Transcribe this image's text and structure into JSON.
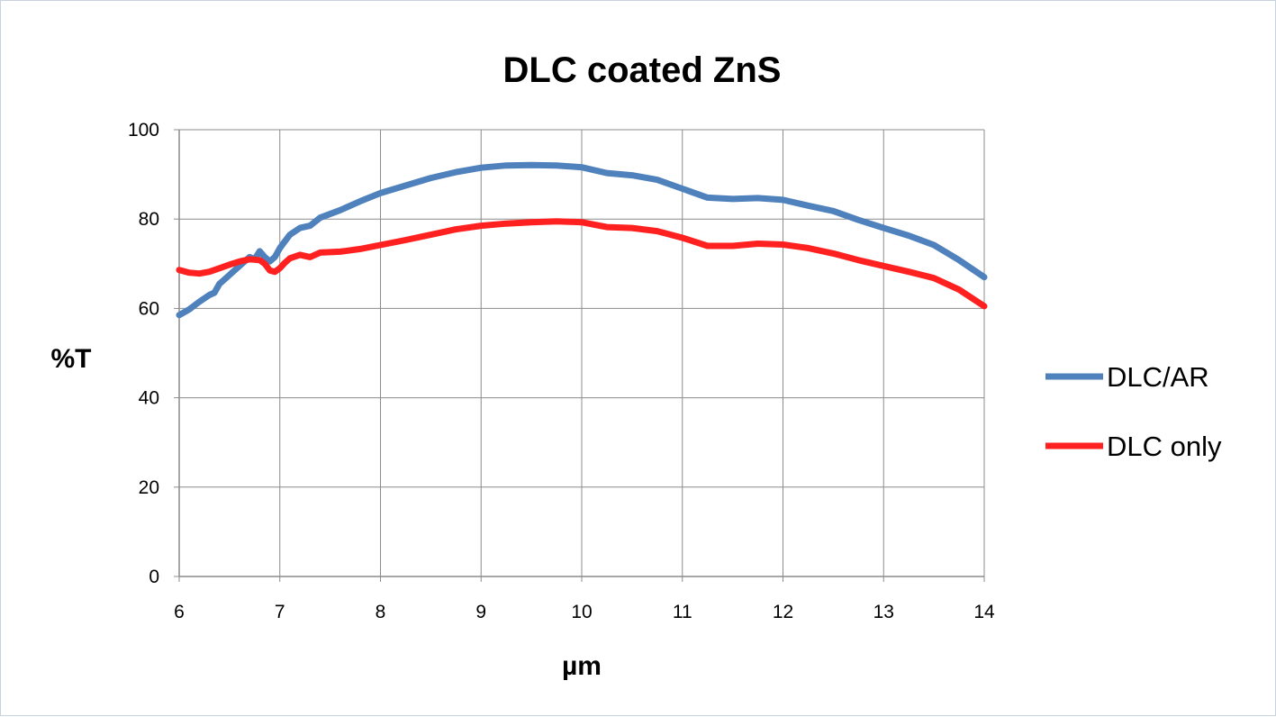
{
  "chart_data": {
    "type": "line",
    "title": "DLC coated ZnS",
    "xlabel": "µm",
    "ylabel": "%T",
    "xlim": [
      6,
      14
    ],
    "ylim": [
      0,
      100
    ],
    "xticks": [
      "6",
      "7",
      "8",
      "9",
      "10",
      "11",
      "12",
      "13",
      "14"
    ],
    "yticks": [
      "0",
      "20",
      "40",
      "60",
      "80",
      "100"
    ],
    "grid": true,
    "legend_position": "right",
    "series": [
      {
        "name": "DLC/AR",
        "color": "#4f81bd",
        "points": [
          [
            6.0,
            58.5
          ],
          [
            6.1,
            59.8
          ],
          [
            6.2,
            61.5
          ],
          [
            6.3,
            63.0
          ],
          [
            6.35,
            63.5
          ],
          [
            6.4,
            65.5
          ],
          [
            6.45,
            66.5
          ],
          [
            6.5,
            67.5
          ],
          [
            6.55,
            68.5
          ],
          [
            6.6,
            69.5
          ],
          [
            6.65,
            70.5
          ],
          [
            6.7,
            71.5
          ],
          [
            6.75,
            71.0
          ],
          [
            6.8,
            72.8
          ],
          [
            6.85,
            71.5
          ],
          [
            6.9,
            70.5
          ],
          [
            6.95,
            71.5
          ],
          [
            7.0,
            73.5
          ],
          [
            7.05,
            75.0
          ],
          [
            7.1,
            76.5
          ],
          [
            7.2,
            78.0
          ],
          [
            7.3,
            78.5
          ],
          [
            7.4,
            80.3
          ],
          [
            7.6,
            82.0
          ],
          [
            7.8,
            84.0
          ],
          [
            8.0,
            85.8
          ],
          [
            8.25,
            87.5
          ],
          [
            8.5,
            89.2
          ],
          [
            8.75,
            90.5
          ],
          [
            9.0,
            91.5
          ],
          [
            9.25,
            92.0
          ],
          [
            9.5,
            92.1
          ],
          [
            9.75,
            92.0
          ],
          [
            10.0,
            91.6
          ],
          [
            10.25,
            90.3
          ],
          [
            10.5,
            89.8
          ],
          [
            10.75,
            88.8
          ],
          [
            11.0,
            86.8
          ],
          [
            11.25,
            84.8
          ],
          [
            11.5,
            84.5
          ],
          [
            11.75,
            84.7
          ],
          [
            12.0,
            84.3
          ],
          [
            12.25,
            83.0
          ],
          [
            12.5,
            81.8
          ],
          [
            12.75,
            79.8
          ],
          [
            13.0,
            78.0
          ],
          [
            13.25,
            76.3
          ],
          [
            13.5,
            74.2
          ],
          [
            13.75,
            70.8
          ],
          [
            14.0,
            67.0
          ]
        ]
      },
      {
        "name": "DLC only",
        "color": "#ff2020",
        "points": [
          [
            6.0,
            68.6
          ],
          [
            6.1,
            68.0
          ],
          [
            6.2,
            67.8
          ],
          [
            6.3,
            68.2
          ],
          [
            6.4,
            69.0
          ],
          [
            6.5,
            69.8
          ],
          [
            6.6,
            70.5
          ],
          [
            6.7,
            71.0
          ],
          [
            6.8,
            70.8
          ],
          [
            6.85,
            70.0
          ],
          [
            6.9,
            68.5
          ],
          [
            6.95,
            68.2
          ],
          [
            7.0,
            69.0
          ],
          [
            7.05,
            70.2
          ],
          [
            7.1,
            71.2
          ],
          [
            7.2,
            72.0
          ],
          [
            7.3,
            71.5
          ],
          [
            7.4,
            72.5
          ],
          [
            7.6,
            72.7
          ],
          [
            7.8,
            73.3
          ],
          [
            8.0,
            74.2
          ],
          [
            8.25,
            75.3
          ],
          [
            8.5,
            76.5
          ],
          [
            8.75,
            77.7
          ],
          [
            9.0,
            78.5
          ],
          [
            9.25,
            79.0
          ],
          [
            9.5,
            79.3
          ],
          [
            9.75,
            79.5
          ],
          [
            10.0,
            79.3
          ],
          [
            10.25,
            78.2
          ],
          [
            10.5,
            78.0
          ],
          [
            10.75,
            77.3
          ],
          [
            11.0,
            75.8
          ],
          [
            11.25,
            74.0
          ],
          [
            11.5,
            74.0
          ],
          [
            11.75,
            74.5
          ],
          [
            12.0,
            74.3
          ],
          [
            12.25,
            73.5
          ],
          [
            12.5,
            72.3
          ],
          [
            12.75,
            70.8
          ],
          [
            13.0,
            69.5
          ],
          [
            13.25,
            68.2
          ],
          [
            13.5,
            66.8
          ],
          [
            13.75,
            64.2
          ],
          [
            14.0,
            60.5
          ]
        ]
      }
    ]
  }
}
